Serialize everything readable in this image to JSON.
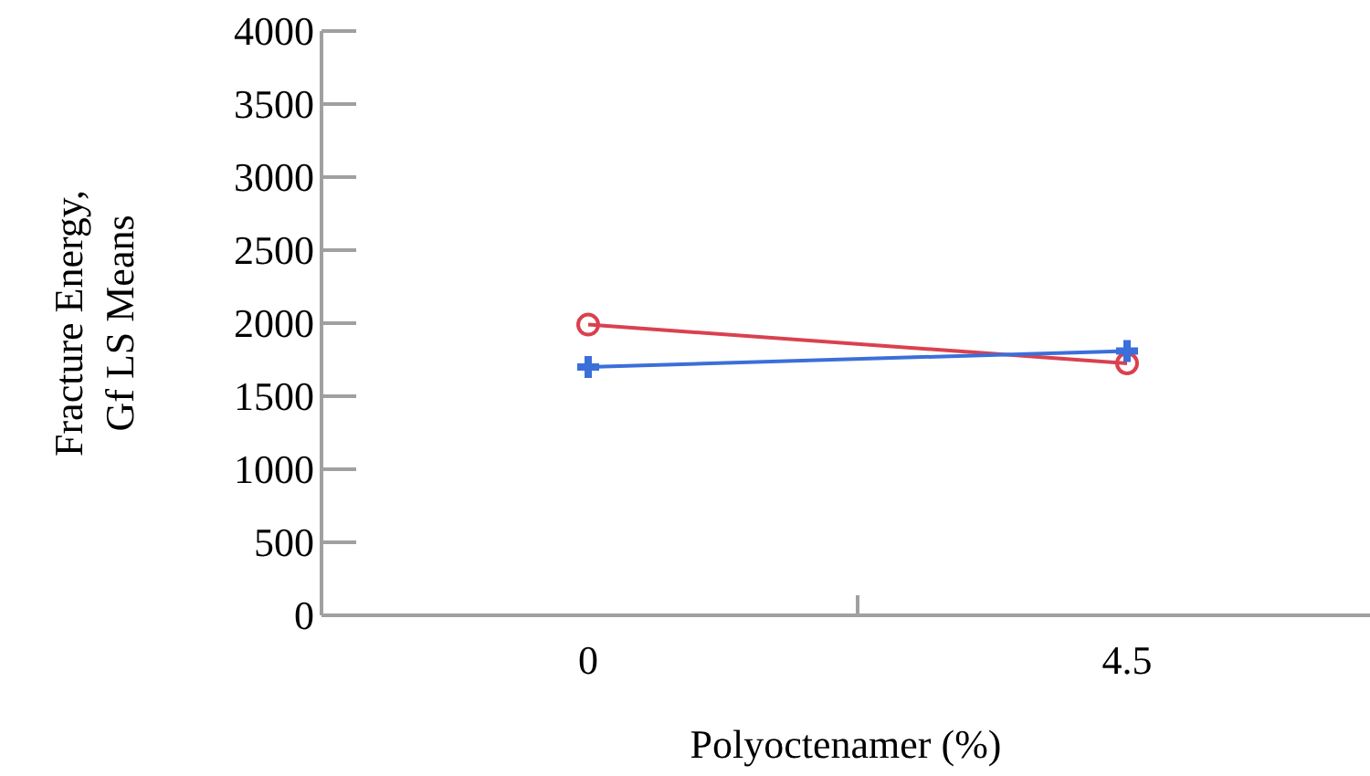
{
  "chart_data": {
    "type": "line",
    "xlabel": "Polyoctenamer (%)",
    "ylabel": "Fracture Energy, Gf LS Means",
    "categories": [
      "0",
      "4.5"
    ],
    "series": [
      {
        "color": "#d9414f",
        "marker": "circle",
        "values": [
          1990,
          1725
        ]
      },
      {
        "color": "#3b6fd9",
        "marker": "cross",
        "values": [
          1700,
          1810
        ]
      }
    ],
    "ylim": [
      0,
      4000
    ],
    "yticks": [
      0,
      500,
      1000,
      1500,
      2000,
      2500,
      3000,
      3500,
      4000
    ],
    "grid": false
  }
}
